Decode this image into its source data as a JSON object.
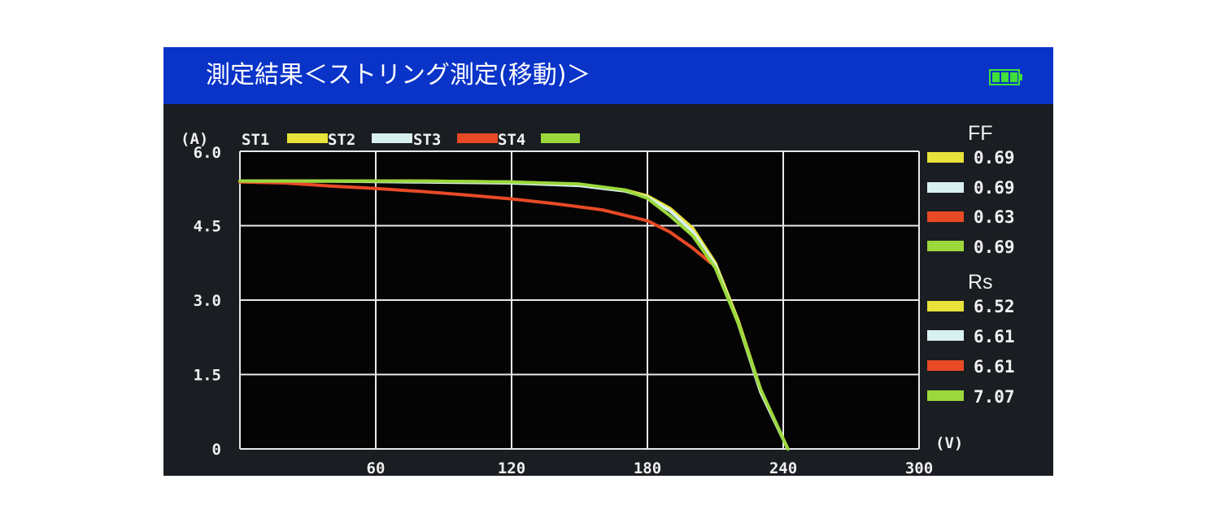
{
  "header": {
    "title": "測定結果＜ストリング測定(移動)＞",
    "battery_icon": "battery-full-icon"
  },
  "chart_data": {
    "type": "line",
    "xlabel": "(V)",
    "ylabel": "(A)",
    "xlim": [
      0,
      300
    ],
    "ylim": [
      0,
      6.0
    ],
    "x_ticks": [
      "60",
      "120",
      "180",
      "240",
      "300"
    ],
    "y_ticks": [
      "6.0",
      "4.5",
      "3.0",
      "1.5",
      "0"
    ],
    "grid": true,
    "legend_placement": "top-left",
    "series": [
      {
        "name": "ST1",
        "color": "#e9e23a",
        "x": [
          0,
          40,
          80,
          120,
          150,
          170,
          180,
          190,
          200,
          210,
          220,
          230,
          242
        ],
        "y": [
          5.4,
          5.4,
          5.4,
          5.38,
          5.33,
          5.22,
          5.1,
          4.85,
          4.45,
          3.75,
          2.6,
          1.2,
          0
        ]
      },
      {
        "name": "ST2",
        "color": "#d8f0f0",
        "x": [
          0,
          40,
          80,
          120,
          150,
          170,
          180,
          190,
          200,
          210,
          220,
          230,
          242
        ],
        "y": [
          5.4,
          5.4,
          5.38,
          5.36,
          5.31,
          5.2,
          5.07,
          4.8,
          4.38,
          3.7,
          2.55,
          1.15,
          0
        ]
      },
      {
        "name": "ST3",
        "color": "#e84a26",
        "x": [
          0,
          20,
          40,
          60,
          80,
          100,
          120,
          140,
          160,
          180,
          190,
          200,
          208
        ],
        "y": [
          5.38,
          5.36,
          5.3,
          5.25,
          5.19,
          5.12,
          5.04,
          4.94,
          4.82,
          4.6,
          4.37,
          4.05,
          3.75
        ]
      },
      {
        "name": "ST4",
        "color": "#9ad83c",
        "x": [
          0,
          40,
          80,
          120,
          150,
          170,
          180,
          190,
          200,
          210,
          220,
          230,
          242
        ],
        "y": [
          5.4,
          5.4,
          5.4,
          5.38,
          5.34,
          5.22,
          5.05,
          4.7,
          4.3,
          3.65,
          2.55,
          1.2,
          0
        ]
      }
    ]
  },
  "ff": {
    "label": "FF",
    "values": [
      "0.69",
      "0.69",
      "0.63",
      "0.69"
    ]
  },
  "rs": {
    "label": "Rs",
    "values": [
      "6.52",
      "6.61",
      "6.61",
      "7.07"
    ]
  }
}
